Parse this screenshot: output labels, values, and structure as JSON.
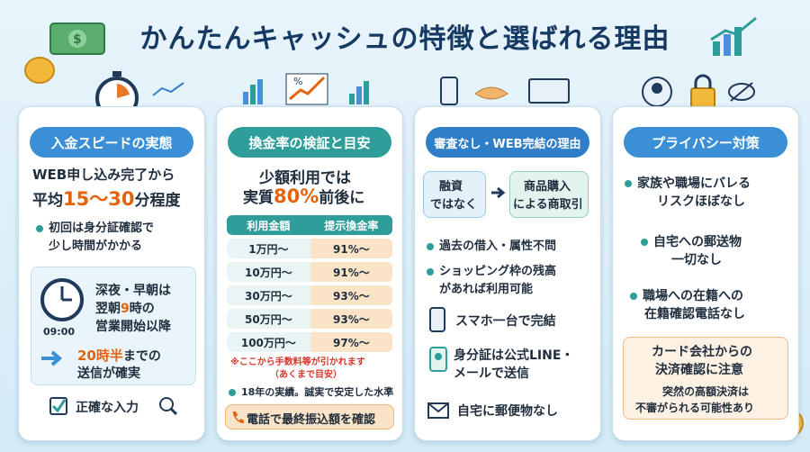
{
  "title": "かんたんキャッシュの特徴と選ばれる理由",
  "colors": {
    "teal": "#2e9e9a",
    "navy": "#173a63",
    "orange": "#e4630c",
    "blue_head": "#3a8fd6"
  },
  "col1": {
    "header": "入金スピードの実態",
    "line1": "WEB申し込み完了から",
    "line2_pre": "平均",
    "line2_hl": "15〜30",
    "line2_post": "分程度",
    "bullet1_a": "初回は身分証確認で",
    "bullet1_b": "少し時間がかかる",
    "night_a": "深夜・早朝は",
    "night_b_pre": "翌朝",
    "night_b_hl": "9",
    "night_b_post": "時の",
    "night_c": "営業開始以降",
    "clock_time": "09:00",
    "sent_hl": "20時半",
    "sent_post": "までの",
    "sent_b": "送信が確実",
    "footer": "正確な入力"
  },
  "col2": {
    "header": "換金率の検証と目安",
    "line1": "少額利用では",
    "line2_pre": "実質",
    "line2_hl": "80%",
    "line2_post": "前後に",
    "table_head": [
      "利用金額",
      "提示換金率"
    ],
    "rows": [
      [
        "1万円〜",
        "91%〜"
      ],
      [
        "10万円〜",
        "91%〜"
      ],
      [
        "30万円〜",
        "93%〜"
      ],
      [
        "50万円〜",
        "93%〜"
      ],
      [
        "100万円〜",
        "97%〜"
      ]
    ],
    "note_a": "※ここから手数料等が引かれます",
    "note_b": "（あくまで目安）",
    "bullet": "18年の実績。誠実で安定した水準",
    "footer": "電話で最終振込額を確認"
  },
  "col3": {
    "header": "審査なし・WEB完結の理由",
    "box_left_a": "融資",
    "box_left_b": "ではなく",
    "box_right_a": "商品購入",
    "box_right_b": "による商取引",
    "bullet1": "過去の借入・属性不問",
    "bullet2_a": "ショッピング枠の残高",
    "bullet2_b": "があれば利用可能",
    "phone": "スマホ一台で完結",
    "id_a": "身分証は公式LINE・",
    "id_b": "メールで送信",
    "mail": "自宅に郵便物なし"
  },
  "col4": {
    "header": "プライバシー対策",
    "b1_a": "家族や職場にバレる",
    "b1_b": "リスクほぼなし",
    "b2_a": "自宅への郵送物",
    "b2_b": "一切なし",
    "b3_a": "職場への在籍への",
    "b3_b": "在籍確認電話なし",
    "warn_a": "カード会社からの",
    "warn_b": "決済確認に注意",
    "warn_c": "突然の高額決済は",
    "warn_d": "不審がられる可能性あり"
  }
}
